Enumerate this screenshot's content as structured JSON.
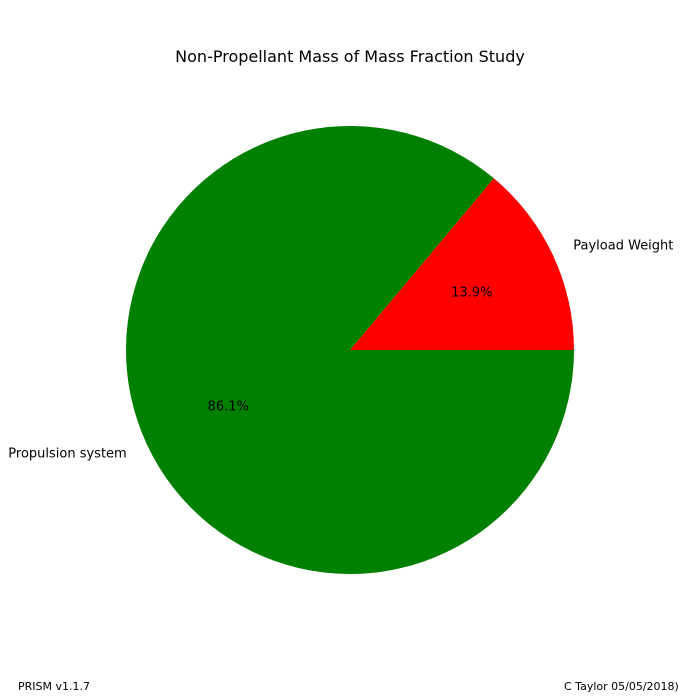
{
  "chart_data": {
    "type": "pie",
    "title": "Non-Propellant Mass of Mass Fraction Study",
    "slices": [
      {
        "label": "Payload Weight",
        "value": 13.9,
        "percent_label": "13.9%",
        "color": "#ff0000"
      },
      {
        "label": "Propulsion system",
        "value": 86.1,
        "percent_label": "86.1%",
        "color": "#008000"
      }
    ],
    "start_angle_deg": 0,
    "direction": "counterclockwise"
  },
  "footer": {
    "left": "PRISM v1.1.7",
    "right": "C Taylor 05/05/2018)"
  }
}
